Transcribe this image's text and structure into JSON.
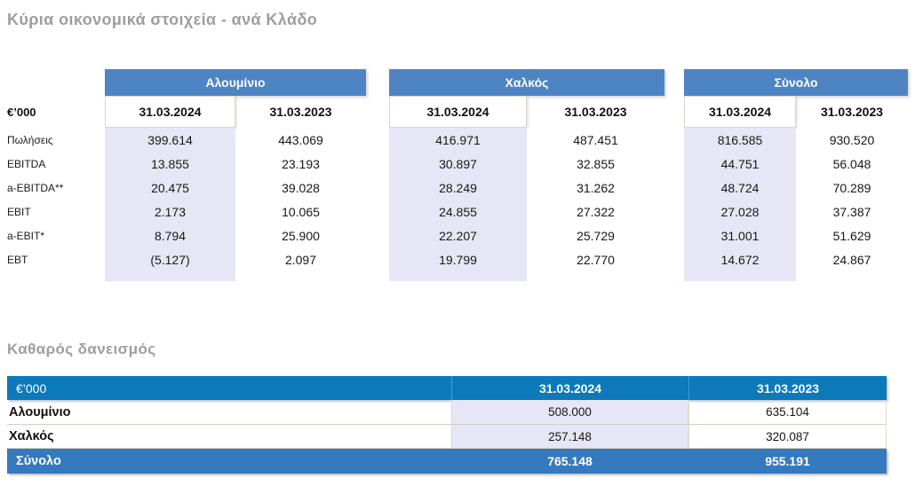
{
  "colors": {
    "title_gray": "#9e9e9e",
    "group_banner_blue": "#4e84c4",
    "net_debt_header_blue": "#0b79ba",
    "total_row_blue": "#3579be",
    "highlight_lavender": "#e6e6f7",
    "text_dark": "#171717"
  },
  "main_table": {
    "title": "Κύρια οικονομικά στοιχεία - ανά Κλάδο",
    "unit_label": "€’000",
    "period_headers": [
      "31.03.2024",
      "31.03.2023"
    ],
    "row_labels": [
      "Πωλήσεις",
      "EBITDA",
      "a-EBITDA**",
      "EBIT",
      "a-EBIT*",
      "EBT"
    ],
    "groups": [
      {
        "name": "Αλουμίνιο",
        "values": [
          [
            "399.614",
            "443.069"
          ],
          [
            "13.855",
            "23.193"
          ],
          [
            "20.475",
            "39.028"
          ],
          [
            "2.173",
            "10.065"
          ],
          [
            "8.794",
            "25.900"
          ],
          [
            "(5.127)",
            "2.097"
          ]
        ]
      },
      {
        "name": "Χαλκός",
        "values": [
          [
            "416.971",
            "487.451"
          ],
          [
            "30.897",
            "32.855"
          ],
          [
            "28.249",
            "31.262"
          ],
          [
            "24.855",
            "27.322"
          ],
          [
            "22.207",
            "25.729"
          ],
          [
            "19.799",
            "22.770"
          ]
        ]
      },
      {
        "name": "Σύνολο",
        "values": [
          [
            "816.585",
            "930.520"
          ],
          [
            "44.751",
            "56.048"
          ],
          [
            "48.724",
            "70.289"
          ],
          [
            "27.028",
            "37.387"
          ],
          [
            "31.001",
            "51.629"
          ],
          [
            "14.672",
            "24.867"
          ]
        ]
      }
    ]
  },
  "net_debt_table": {
    "title": "Καθαρός δανεισμός",
    "unit_label": "€’000",
    "period_headers": [
      "31.03.2024",
      "31.03.2023"
    ],
    "rows": [
      {
        "label": "Αλουμίνιο",
        "values": [
          "508.000",
          "635.104"
        ]
      },
      {
        "label": "Χαλκός",
        "values": [
          "257.148",
          "320.087"
        ]
      },
      {
        "label": "Σύνολο",
        "values": [
          "765.148",
          "955.191"
        ]
      }
    ]
  }
}
